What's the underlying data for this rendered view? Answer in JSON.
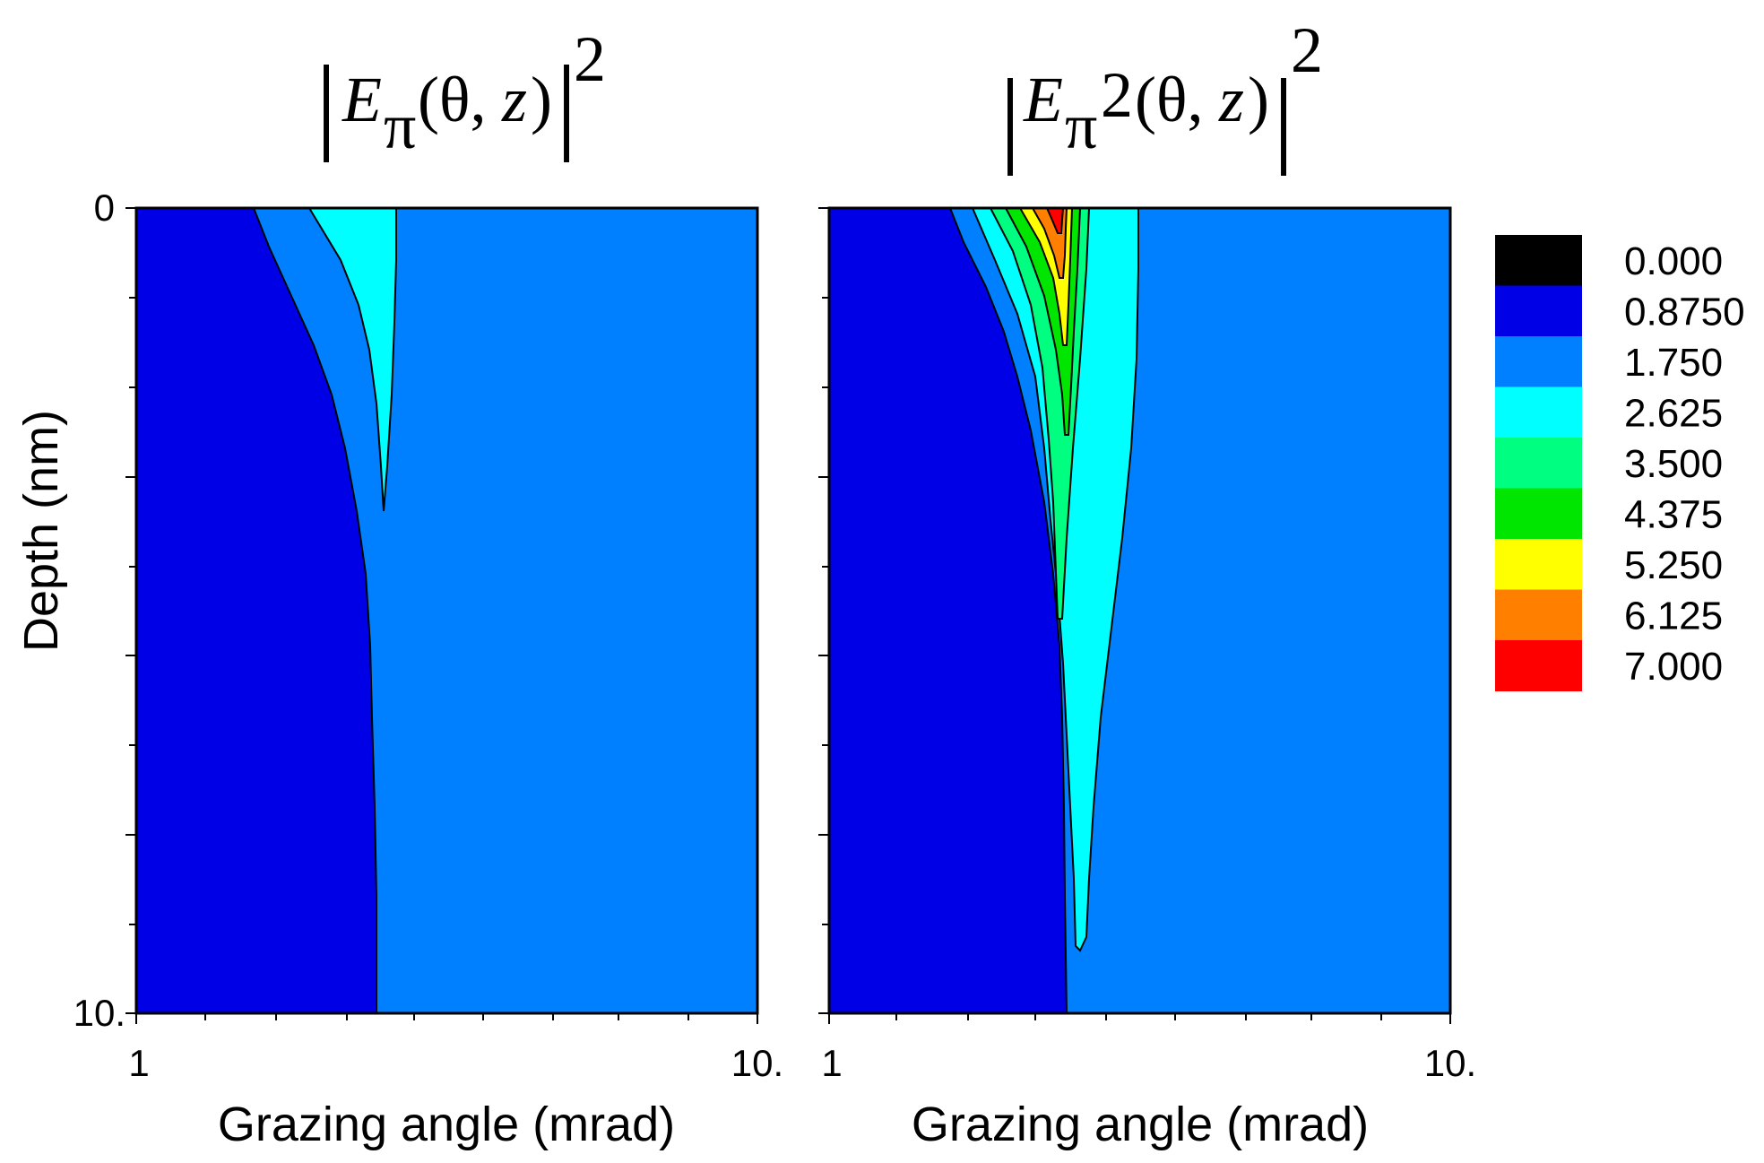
{
  "chart_data": [
    {
      "type": "heatmap",
      "panel": "left",
      "title": {
        "bar_left": "|",
        "E": "E",
        "sub": "π",
        "args": "(θ,",
        "z": "z",
        "close": ")",
        "bar_right": "|",
        "power": "2"
      },
      "xlabel": "Grazing angle (mrad)",
      "ylabel": "Depth (nm)",
      "x_scale": "log",
      "xlim": [
        1,
        10
      ],
      "ylim": [
        0,
        10
      ],
      "x_tick_labels": [
        "1",
        "10."
      ],
      "y_tick_labels": [
        "0",
        "10."
      ],
      "y_axis": "inverted",
      "regions": [
        {
          "level": "0.8750",
          "color": "#0000e6",
          "boundary": [
            [
              1.5,
              0
            ],
            [
              1.9,
              2
            ],
            [
              2.2,
              4
            ],
            [
              2.4,
              6
            ],
            [
              2.5,
              8
            ],
            [
              2.55,
              10
            ]
          ]
        },
        {
          "level": "1.750",
          "color": "#0080ff",
          "note_region": "background"
        },
        {
          "level": "2.625",
          "color": "#00ffff",
          "boundary_left": [
            [
              1.9,
              0
            ],
            [
              2.3,
              1.5
            ],
            [
              2.55,
              3.9
            ]
          ],
          "boundary_right": [
            [
              2.6,
              3.9
            ],
            [
              2.65,
              1.5
            ],
            [
              2.65,
              0
            ]
          ]
        }
      ]
    },
    {
      "type": "heatmap",
      "panel": "right",
      "title": {
        "bar_left": "|",
        "E": "E",
        "sub": "π",
        "sup": "2",
        "args": "(θ,",
        "z": "z",
        "close": ")",
        "bar_right": "|",
        "power": "2"
      },
      "xlabel": "Grazing angle (mrad)",
      "x_scale": "log",
      "xlim": [
        1,
        10
      ],
      "ylim": [
        0,
        10
      ],
      "x_tick_labels": [
        "1",
        "10."
      ],
      "y_axis": "inverted",
      "regions": [
        {
          "level": "0.8750",
          "color": "#0000e6",
          "boundary": [
            [
              1.6,
              0
            ],
            [
              2.0,
              2
            ],
            [
              2.3,
              4
            ],
            [
              2.4,
              6
            ],
            [
              2.45,
              8
            ],
            [
              2.45,
              10
            ]
          ]
        },
        {
          "level": "1.750",
          "color": "#0080ff",
          "note_region": "background"
        },
        {
          "level": "2.625",
          "color": "#00ffff",
          "peak_x": 2.5,
          "depth_max": 9.2
        },
        {
          "level": "3.500",
          "color": "#00ff80",
          "peak_x": 2.45,
          "depth_max": 5.1
        },
        {
          "level": "4.375",
          "color": "#00e600",
          "peak_x": 2.42,
          "depth_max": 2.8
        },
        {
          "level": "5.250",
          "color": "#ffff00",
          "peak_x": 2.38,
          "depth_max": 1.5
        },
        {
          "level": "6.125",
          "color": "#ff8000",
          "peak_x": 2.35,
          "depth_max": 0.9
        },
        {
          "level": "7.000",
          "color": "#ff0000",
          "peak_x": 2.3,
          "depth_max": 0.3
        }
      ]
    }
  ],
  "legend": {
    "entries": [
      {
        "label": "0.000",
        "color": "#000000"
      },
      {
        "label": "0.8750",
        "color": "#0000e6"
      },
      {
        "label": "1.750",
        "color": "#0080ff"
      },
      {
        "label": "2.625",
        "color": "#00ffff"
      },
      {
        "label": "3.500",
        "color": "#00ff80"
      },
      {
        "label": "4.375",
        "color": "#00e600"
      },
      {
        "label": "5.250",
        "color": "#ffff00"
      },
      {
        "label": "6.125",
        "color": "#ff8000"
      },
      {
        "label": "7.000",
        "color": "#ff0000"
      }
    ]
  }
}
